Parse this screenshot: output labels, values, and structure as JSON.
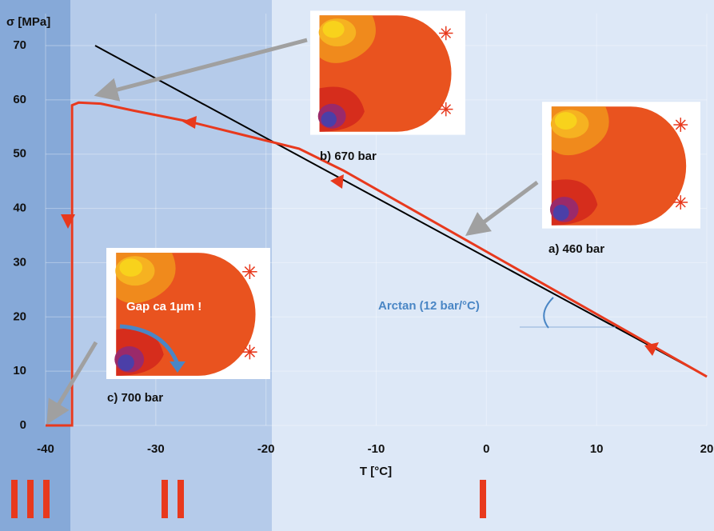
{
  "chart_data": {
    "type": "line",
    "ylabel": "σ [MPa]",
    "xlabel": "T [°C]",
    "xlim": [
      -40,
      20
    ],
    "ylim": [
      0,
      70
    ],
    "xticks": [
      -40,
      -30,
      -20,
      -10,
      0,
      10,
      20
    ],
    "yticks": [
      0,
      10,
      20,
      30,
      40,
      50,
      60,
      70
    ],
    "grid": true,
    "series": [
      {
        "color": "#000000",
        "x": [
          -35.5,
          20
        ],
        "values": [
          70,
          9
        ]
      },
      {
        "color": "#e8391d",
        "x": [
          20,
          -13,
          -17,
          -22,
          -27,
          -32,
          -35,
          -37,
          -37.6,
          -37.6,
          -40
        ],
        "values": [
          9,
          47,
          51,
          53.5,
          56,
          58,
          59.3,
          59.5,
          59,
          0,
          0
        ]
      }
    ],
    "annotations": [
      "b) 670 bar",
      "a) 460 bar",
      "c) 700 bar",
      "Gap ca 1μm !",
      "Arctan (12 bar/°C)"
    ]
  }
}
